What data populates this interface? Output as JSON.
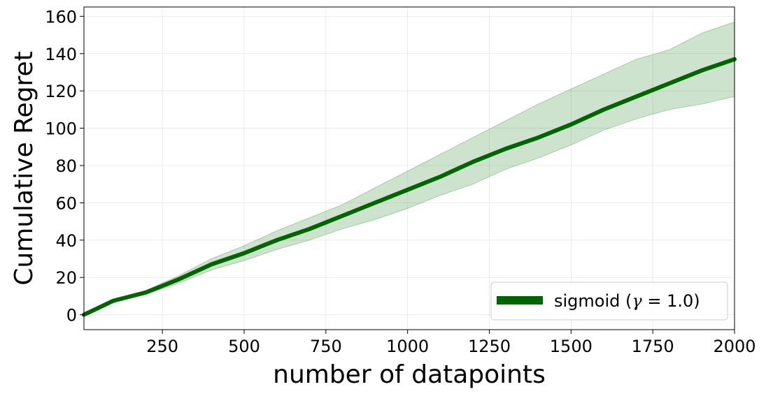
{
  "chart_data": {
    "type": "line",
    "xlabel": "number of datapoints",
    "ylabel": "Cumulative Regret",
    "xlim": [
      10,
      2000
    ],
    "ylim": [
      -8,
      165
    ],
    "xticks": [
      250,
      500,
      750,
      1000,
      1250,
      1500,
      1750,
      2000
    ],
    "yticks": [
      0,
      20,
      40,
      60,
      80,
      100,
      120,
      140,
      160
    ],
    "grid": true,
    "legend_position": "bottom-right",
    "series": [
      {
        "name": "sigmoid (γ = 1.0)",
        "color": "#006400",
        "band_color": "#2e8b2e",
        "x": [
          10,
          100,
          200,
          300,
          400,
          500,
          600,
          700,
          800,
          900,
          1000,
          1100,
          1200,
          1300,
          1400,
          1500,
          1600,
          1700,
          1800,
          1900,
          2000
        ],
        "y": [
          0,
          7.5,
          12,
          19,
          27,
          33,
          40,
          46,
          53,
          60,
          67,
          74,
          82,
          89,
          95,
          102,
          110,
          117,
          124,
          131,
          137
        ],
        "lower": [
          0,
          7,
          11,
          17,
          24,
          29,
          35,
          40,
          46,
          51,
          57,
          64,
          70,
          78,
          84,
          91,
          99,
          105,
          110,
          113,
          117
        ],
        "upper": [
          0,
          8,
          13,
          21,
          30,
          37,
          45,
          52,
          59,
          68,
          77,
          86,
          95,
          104,
          113,
          121,
          129,
          137,
          142,
          151,
          157
        ]
      }
    ],
    "legend": {
      "prefix": "sigmoid (",
      "gamma": "γ",
      "equals": " = ",
      "value": "1.0",
      "suffix": ")"
    }
  }
}
